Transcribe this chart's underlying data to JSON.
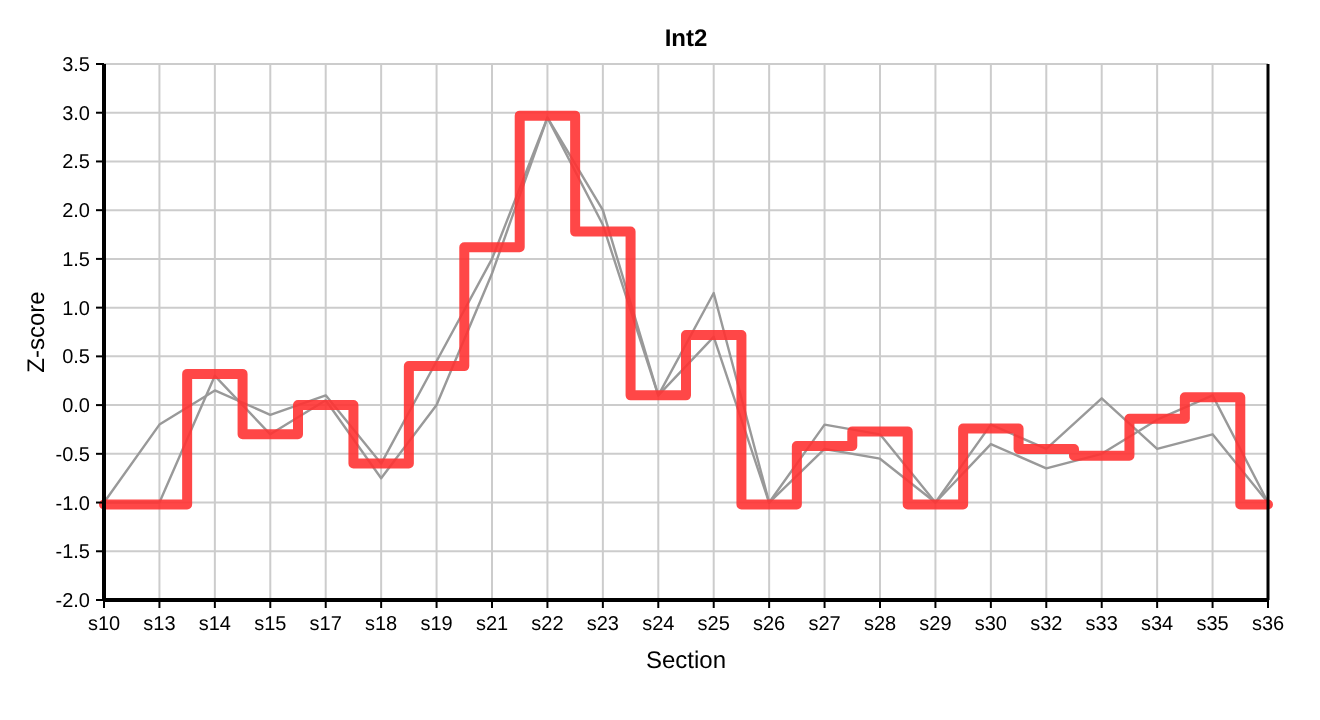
{
  "chart_data": {
    "type": "line",
    "title": "Int2",
    "xlabel": "Section",
    "ylabel": "Z-score",
    "categories": [
      "s10",
      "s13",
      "s14",
      "s15",
      "s17",
      "s18",
      "s19",
      "s21",
      "s22",
      "s23",
      "s24",
      "s25",
      "s26",
      "s27",
      "s28",
      "s29",
      "s30",
      "s32",
      "s33",
      "s34",
      "s35",
      "s36"
    ],
    "series": [
      {
        "type": "line",
        "color": "#999999",
        "values": [
          -1.0,
          -0.2,
          0.15,
          -0.1,
          0.1,
          -0.6,
          0.45,
          1.5,
          2.95,
          2.0,
          0.1,
          1.15,
          -1.0,
          -0.2,
          -0.3,
          -1.0,
          -0.2,
          -0.45,
          0.07,
          -0.45,
          -0.3,
          -1.0
        ]
      },
      {
        "type": "line",
        "color": "#999999",
        "values": [
          -1.0,
          -1.0,
          0.3,
          -0.3,
          0.05,
          -0.75,
          0.0,
          1.35,
          2.95,
          1.85,
          0.1,
          0.7,
          -1.0,
          -0.45,
          -0.55,
          -1.0,
          -0.4,
          -0.65,
          -0.5,
          -0.15,
          0.1,
          -1.0
        ]
      },
      {
        "type": "step",
        "color": "#ff3333",
        "values": [
          -1.02,
          -1.02,
          0.32,
          -0.3,
          0.0,
          -0.6,
          0.4,
          1.62,
          2.97,
          1.78,
          0.1,
          0.72,
          -1.02,
          -0.42,
          -0.27,
          -1.02,
          -0.24,
          -0.45,
          -0.52,
          -0.14,
          0.08,
          -1.02
        ]
      }
    ],
    "ylim": [
      -2.0,
      3.5
    ],
    "yticks": [
      {
        "value": -2,
        "label": "-2.0"
      },
      {
        "value": -1.5,
        "label": "-1.5"
      },
      {
        "value": -1,
        "label": "-1.0"
      },
      {
        "value": -0.5,
        "label": "-0.5"
      },
      {
        "value": 0,
        "label": "0.0"
      },
      {
        "value": 0.5,
        "label": "0.5"
      },
      {
        "value": 1,
        "label": "1.0"
      },
      {
        "value": 1.5,
        "label": "1.5"
      },
      {
        "value": 2,
        "label": "2.0"
      },
      {
        "value": 2.5,
        "label": "2.5"
      },
      {
        "value": 3,
        "label": "3.0"
      },
      {
        "value": 3.5,
        "label": "3.5"
      }
    ],
    "grid": true,
    "marker": "none",
    "line_style": "solid"
  }
}
